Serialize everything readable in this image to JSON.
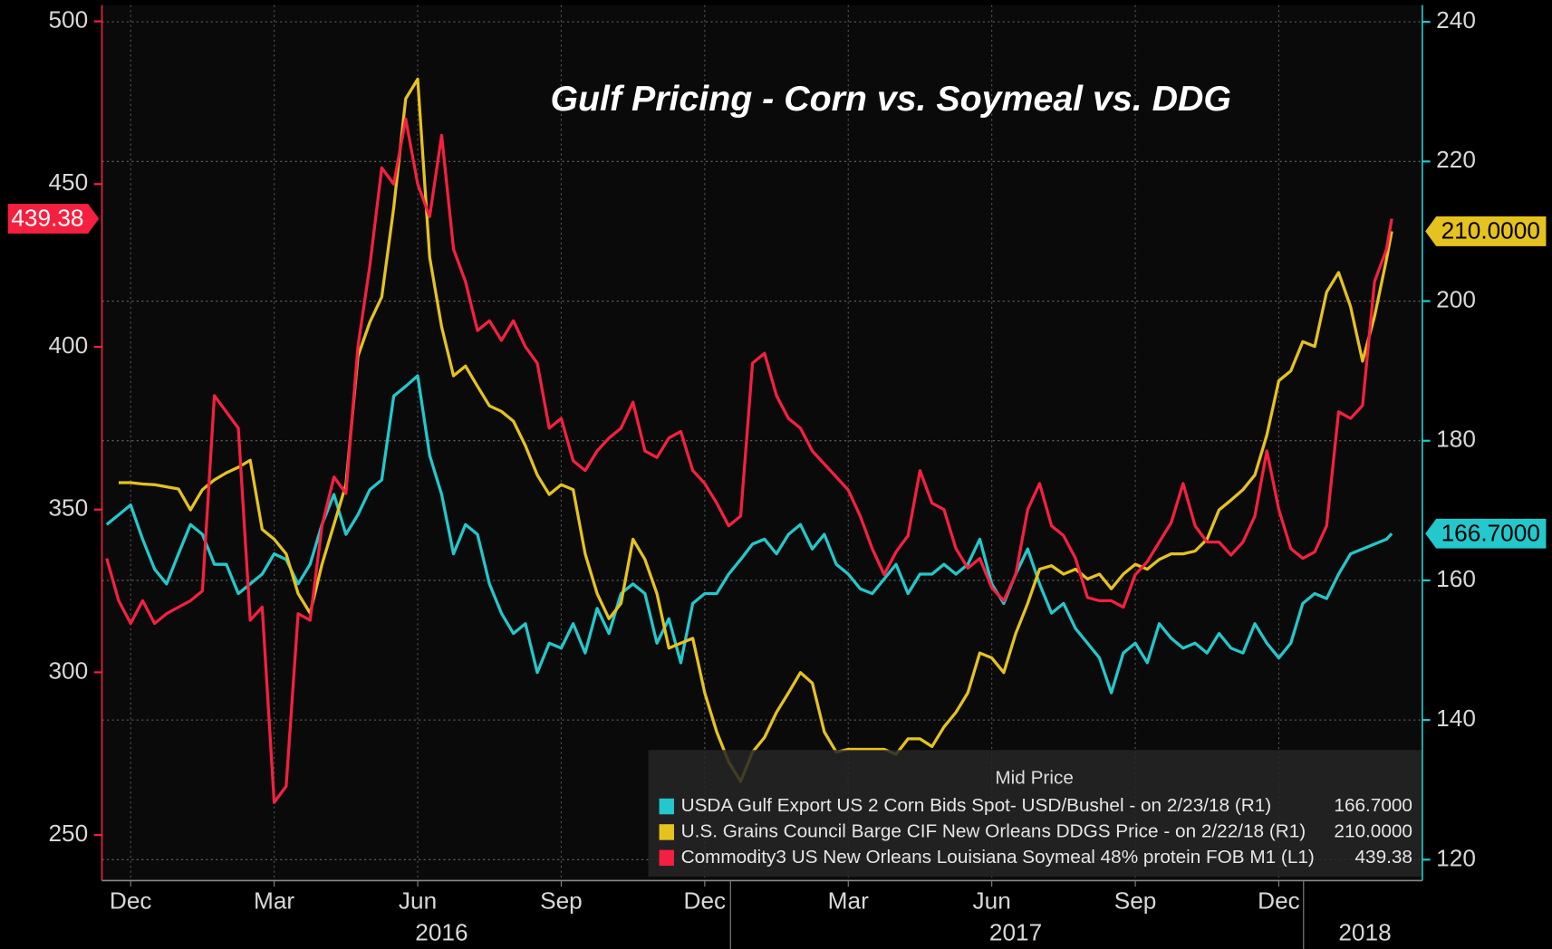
{
  "chart_data": {
    "type": "line",
    "title": "Gulf Pricing - Corn vs. Soymeal vs. DDG",
    "legend_title": "Mid Price",
    "legend": "bottom-right",
    "grid": "y2",
    "xlim": [
      -0.1,
      27.5
    ],
    "xticks": [
      {
        "value": 0.5,
        "label": "Dec"
      },
      {
        "value": 3.5,
        "label": "Mar"
      },
      {
        "value": 6.5,
        "label": "Jun"
      },
      {
        "value": 9.5,
        "label": "Sep"
      },
      {
        "value": 12.5,
        "label": "Dec"
      },
      {
        "value": 15.5,
        "label": "Mar"
      },
      {
        "value": 18.5,
        "label": "Jun"
      },
      {
        "value": 21.5,
        "label": "Sep"
      },
      {
        "value": 24.5,
        "label": "Dec"
      }
    ],
    "xticks2": [
      {
        "value": 7,
        "label": "2016"
      },
      {
        "value": 19,
        "label": "2017"
      },
      {
        "value": 26.3,
        "label": "2018"
      }
    ],
    "ylim": [
      236,
      505
    ],
    "yticks": [
      250,
      300,
      350,
      400,
      450,
      500
    ],
    "y2lim": [
      117,
      242.4
    ],
    "y2ticks": [
      120,
      140,
      160,
      180,
      200,
      220,
      240
    ],
    "x": [
      0,
      0.25,
      0.5,
      0.75,
      1,
      1.25,
      1.5,
      1.75,
      2,
      2.25,
      2.5,
      2.75,
      3,
      3.25,
      3.5,
      3.75,
      4,
      4.25,
      4.5,
      4.75,
      5,
      5.25,
      5.5,
      5.75,
      6,
      6.25,
      6.5,
      6.75,
      7,
      7.25,
      7.5,
      7.75,
      8,
      8.25,
      8.5,
      8.75,
      9,
      9.25,
      9.5,
      9.75,
      10,
      10.25,
      10.5,
      10.75,
      11,
      11.25,
      11.5,
      11.75,
      12,
      12.25,
      12.5,
      12.75,
      13,
      13.25,
      13.5,
      13.75,
      14,
      14.25,
      14.5,
      14.75,
      15,
      15.25,
      15.5,
      15.75,
      16,
      16.25,
      16.5,
      16.75,
      17,
      17.25,
      17.5,
      17.75,
      18,
      18.25,
      18.5,
      18.75,
      19,
      19.25,
      19.5,
      19.75,
      20,
      20.25,
      20.5,
      20.75,
      21,
      21.25,
      21.5,
      21.75,
      22,
      22.25,
      22.5,
      22.75,
      23,
      23.25,
      23.5,
      23.75,
      24,
      24.25,
      24.5,
      24.75,
      25,
      25.25,
      25.5,
      25.75,
      26,
      26.25,
      26.5,
      26.75,
      26.86
    ],
    "series": [
      {
        "name": "USDA Gulf Export US 2 Corn Bids Spot- USD/Bushel -  on 2/23/18  (R1)",
        "color": "#22c8cc",
        "axis": "y2",
        "last": {
          "value": 166.7,
          "label": "166.7000"
        },
        "values": [
          168,
          169.4,
          170.8,
          165.9,
          161.6,
          159.5,
          163.8,
          168,
          166.6,
          162.3,
          162.3,
          158.1,
          159.5,
          160.9,
          163.8,
          163,
          159.5,
          162.3,
          168,
          172.3,
          166.6,
          169.4,
          173,
          174.4,
          186.4,
          187.8,
          189.3,
          177.9,
          172.3,
          163.8,
          168,
          166.6,
          159.5,
          155.3,
          152.4,
          153.8,
          146.8,
          151,
          150.3,
          153.8,
          149.6,
          156,
          152.4,
          158.1,
          159.5,
          158.1,
          151,
          154.5,
          148.2,
          156.7,
          158.1,
          158.1,
          160.9,
          163,
          165.2,
          165.9,
          163.8,
          166.6,
          168,
          164.5,
          166.6,
          162.3,
          160.9,
          158.8,
          158.1,
          160.2,
          162.3,
          158.1,
          160.9,
          160.9,
          162.3,
          160.9,
          162.3,
          165.9,
          159.5,
          156.7,
          160.9,
          164.5,
          159.5,
          155.3,
          156.7,
          153.1,
          151,
          148.9,
          143.9,
          149.6,
          151,
          148.2,
          153.8,
          151.7,
          150.3,
          151,
          149.6,
          152.4,
          150.3,
          149.6,
          153.8,
          151,
          148.9,
          151,
          156.7,
          158.1,
          157.4,
          160.9,
          163.8,
          164.5,
          165.2,
          165.9,
          166.7
        ]
      },
      {
        "name": "U.S. Grains Council Barge CIF New Orleans DDGS Price -  on 2/22/18  (R1)",
        "color": "#e6c21e",
        "axis": "y2",
        "last": {
          "value": 210,
          "label": "210.0000"
        },
        "values": [
          null,
          174,
          174,
          173.8,
          173.7,
          173.4,
          173.1,
          170.1,
          173,
          174.4,
          175.4,
          176.2,
          177.2,
          167.3,
          165.9,
          163.8,
          158.1,
          155.3,
          162.3,
          168,
          173.7,
          192.1,
          197,
          200.6,
          213.4,
          229,
          231.8,
          206.3,
          196.3,
          189.3,
          190.7,
          187.8,
          185,
          184.2,
          182.8,
          179.3,
          175.1,
          172.3,
          173.7,
          173,
          163.8,
          158.1,
          154.5,
          156.7,
          165.9,
          163,
          158.1,
          150.3,
          151,
          151.7,
          143.9,
          138.3,
          134,
          131.2,
          135.4,
          137.5,
          141.1,
          143.9,
          146.8,
          145.3,
          138.3,
          135.4,
          135.8,
          135.8,
          135.8,
          135.8,
          135.1,
          137.3,
          137.3,
          136.2,
          139,
          141.1,
          143.9,
          149.6,
          148.9,
          146.8,
          152.4,
          156.7,
          161.6,
          162.1,
          160.9,
          161.6,
          160.2,
          160.9,
          158.8,
          160.9,
          162.3,
          161.6,
          163,
          163.8,
          163.8,
          164.2,
          165.9,
          170.1,
          171.5,
          173,
          175.1,
          180.8,
          188.6,
          190,
          194.2,
          193.5,
          201.3,
          204.1,
          199.2,
          191.4,
          197.8,
          206,
          210
        ]
      },
      {
        "name": "Commodity3 US New Orleans Louisiana Soymeal 48% protein FOB M1  (L1)",
        "color": "#f5203f",
        "axis": "y",
        "last": {
          "value": 439.38,
          "label": "439.38"
        },
        "values": [
          335,
          322,
          315,
          322,
          315,
          318,
          320,
          322,
          325,
          385,
          380,
          375,
          316,
          320,
          260,
          265,
          318,
          316,
          345,
          360,
          355,
          400,
          425,
          455,
          450,
          470,
          450,
          440,
          465,
          430,
          420,
          405,
          408,
          402,
          408,
          400,
          395,
          375,
          378,
          365,
          362,
          368,
          372,
          375,
          383,
          368,
          366,
          372,
          374,
          362,
          358,
          352,
          345,
          348,
          395,
          398,
          385,
          378,
          375,
          368,
          364,
          360,
          356,
          348,
          338,
          330,
          337,
          342,
          362,
          352,
          350,
          338,
          332,
          335,
          326,
          322,
          330,
          350,
          358,
          345,
          342,
          335,
          323,
          322,
          322,
          320,
          330,
          334,
          340,
          346,
          358,
          345,
          340,
          340,
          336,
          340,
          348,
          368,
          350,
          338,
          335,
          337,
          345,
          380,
          378,
          382,
          420,
          430,
          439.38
        ]
      }
    ]
  }
}
